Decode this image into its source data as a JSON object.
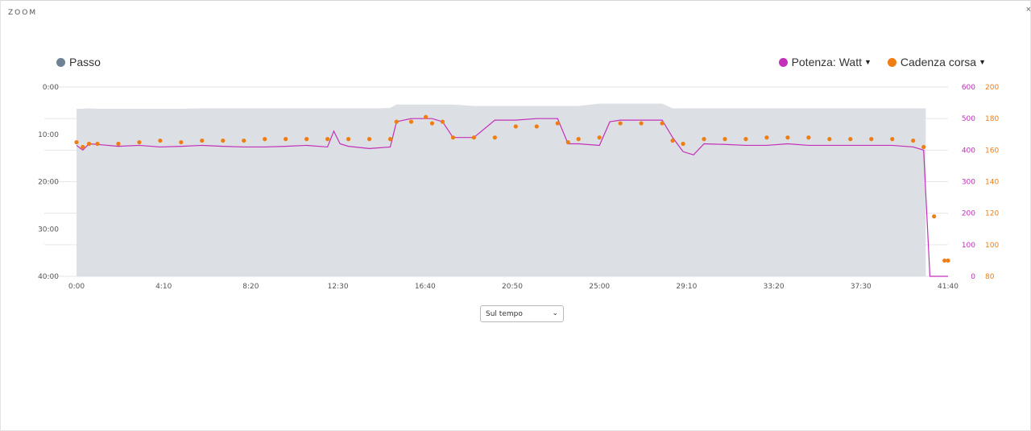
{
  "header": {
    "title": "ZOOM",
    "close_icon": "close-icon"
  },
  "colors": {
    "pace": "#6f8294",
    "pace_fill": "#dcdfe3",
    "power": "#c330b9",
    "cadence": "#ee7d14",
    "grid": "#e6e6e6"
  },
  "legend": {
    "pace": {
      "label": "Passo"
    },
    "power": {
      "label": "Potenza: Watt"
    },
    "cadence": {
      "label": "Cadenza corsa"
    }
  },
  "controls": {
    "x_mode": {
      "selected": "Sul tempo"
    }
  },
  "chart_data": {
    "type": "line",
    "x_unit": "min",
    "xlim": [
      0,
      41.667
    ],
    "x_ticks": [
      "0:00",
      "4:10",
      "8:20",
      "12:30",
      "16:40",
      "20:50",
      "25:00",
      "29:10",
      "33:20",
      "37:30",
      "41:40"
    ],
    "axes": {
      "left": {
        "series": "Passo",
        "ticks": [
          "0:00",
          "10:00",
          "20:00",
          "30:00",
          "40:00"
        ],
        "range": [
          0,
          40
        ],
        "inverted": true
      },
      "right1": {
        "series": "Potenza: Watt",
        "ticks": [
          "0",
          "100",
          "200",
          "300",
          "400",
          "500",
          "600"
        ],
        "range": [
          0,
          600
        ]
      },
      "right2": {
        "series": "Cadenza corsa",
        "ticks": [
          "80",
          "100",
          "120",
          "140",
          "160",
          "180",
          "200"
        ],
        "range": [
          80,
          200
        ]
      }
    },
    "grid": true,
    "series": [
      {
        "name": "Passo",
        "type": "area",
        "x": [
          0,
          0.3,
          0.5,
          1,
          1.5,
          2,
          3,
          4,
          5,
          6,
          7,
          8,
          9,
          10,
          11,
          12,
          12.5,
          13,
          13.5,
          14,
          14.5,
          15,
          15.3,
          15.6,
          16,
          17,
          18,
          19,
          20,
          21,
          22,
          23,
          24,
          25,
          26,
          27,
          28,
          28.5,
          29,
          30,
          31,
          32,
          33,
          34,
          35,
          36,
          37,
          38,
          39,
          40,
          40.5,
          40.6
        ],
        "y": [
          4.6,
          4.6,
          4.5,
          4.6,
          4.6,
          4.6,
          4.6,
          4.6,
          4.6,
          4.5,
          4.5,
          4.5,
          4.5,
          4.5,
          4.5,
          4.5,
          4.5,
          4.5,
          4.5,
          4.5,
          4.5,
          4.4,
          3.7,
          3.7,
          3.7,
          3.7,
          3.7,
          4.0,
          4.0,
          4.0,
          4.0,
          4.0,
          4.0,
          3.5,
          3.5,
          3.5,
          3.5,
          4.5,
          4.5,
          4.5,
          4.5,
          4.5,
          4.5,
          4.5,
          4.5,
          4.5,
          4.5,
          4.5,
          4.5,
          4.5,
          4.5,
          4.5
        ]
      },
      {
        "name": "Potenza: Watt",
        "type": "line",
        "x": [
          0,
          0.3,
          0.6,
          1,
          2,
          3,
          4,
          5,
          6,
          7,
          8,
          9,
          10,
          11,
          12,
          12.3,
          12.6,
          13,
          14,
          15,
          15.3,
          16,
          17,
          17.5,
          18,
          19,
          20,
          21,
          22,
          23,
          23.5,
          24,
          25,
          25.5,
          26,
          27,
          28,
          28.5,
          29,
          29.5,
          30,
          31,
          32,
          33,
          34,
          35,
          36,
          37,
          38,
          39,
          40,
          40.5,
          40.8,
          41,
          41.667
        ],
        "y": [
          415,
          400,
          420,
          418,
          412,
          415,
          410,
          412,
          415,
          412,
          410,
          410,
          412,
          415,
          410,
          460,
          420,
          412,
          405,
          410,
          490,
          500,
          500,
          490,
          440,
          440,
          495,
          495,
          500,
          500,
          420,
          420,
          415,
          490,
          495,
          495,
          495,
          440,
          395,
          385,
          420,
          418,
          415,
          415,
          420,
          415,
          415,
          415,
          415,
          415,
          410,
          400,
          0,
          0,
          0
        ]
      },
      {
        "name": "Cadenza corsa",
        "type": "scatter",
        "x": [
          0,
          0.3,
          0.6,
          1,
          2,
          3,
          4,
          5,
          6,
          7,
          8,
          9,
          10,
          11,
          12,
          13,
          14,
          15,
          15.3,
          16,
          16.7,
          17,
          17.5,
          18,
          19,
          20,
          21,
          22,
          23,
          23.5,
          24,
          25,
          26,
          27,
          28,
          28.5,
          29,
          30,
          31,
          32,
          33,
          34,
          35,
          36,
          37,
          38,
          39,
          40,
          40.5,
          41,
          41.5,
          41.667
        ],
        "y": [
          165,
          162,
          164,
          164,
          164,
          165,
          166,
          165,
          166,
          166,
          166,
          167,
          167,
          167,
          167,
          167,
          167,
          167,
          178,
          178,
          181,
          177,
          178,
          168,
          168,
          168,
          175,
          175,
          177,
          165,
          167,
          168,
          177,
          177,
          177,
          166,
          164,
          167,
          167,
          167,
          168,
          168,
          168,
          167,
          167,
          167,
          167,
          166,
          162,
          118,
          90,
          90
        ]
      }
    ]
  }
}
